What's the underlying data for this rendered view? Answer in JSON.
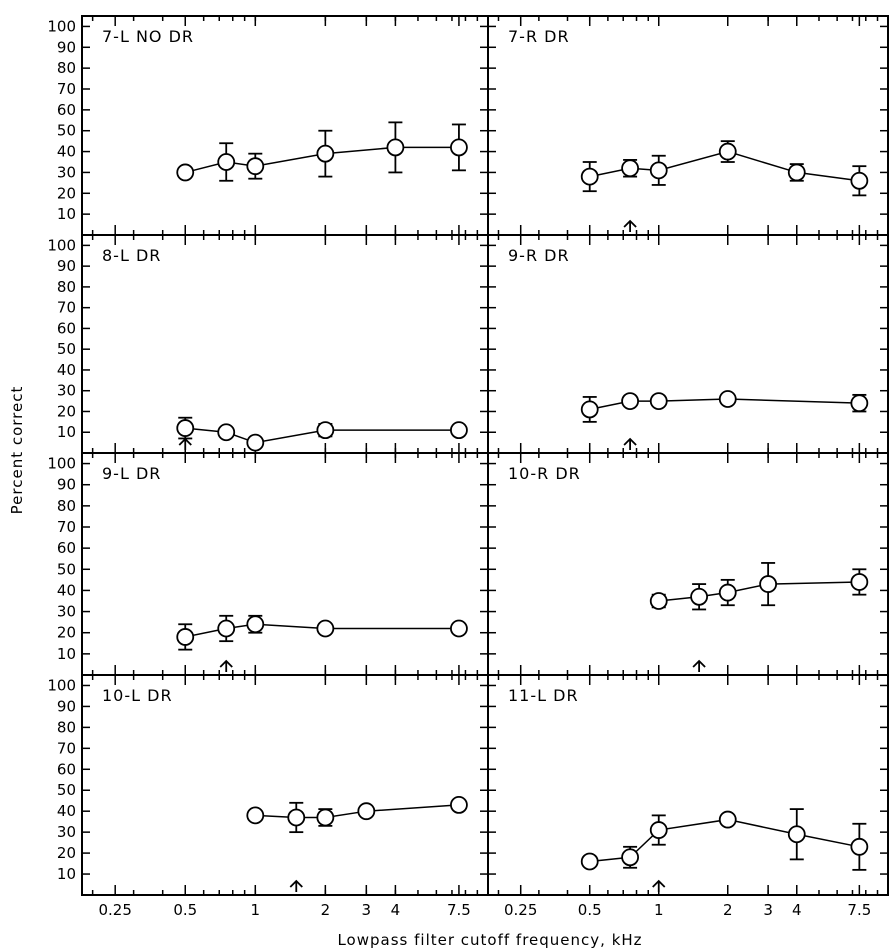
{
  "figure": {
    "ylabel": "Percent correct",
    "xlabel": "Lowpass filter cutoff frequency, kHz"
  },
  "chart_data": {
    "type": "scatter",
    "layout": "4x2 grid of panels",
    "xscale": "log",
    "xlim": [
      0.18,
      10
    ],
    "ylim": [
      0,
      105
    ],
    "xticks": [
      0.25,
      0.5,
      1,
      2,
      3,
      4,
      7.5
    ],
    "xtick_labels": [
      "0.25",
      "0.5",
      "1",
      "2",
      "3",
      "4",
      "7.5"
    ],
    "yticks": [
      10,
      20,
      30,
      40,
      50,
      60,
      70,
      80,
      90,
      100
    ],
    "ytick_labels": [
      "10",
      "20",
      "30",
      "40",
      "50",
      "60",
      "70",
      "80",
      "90",
      "100"
    ],
    "marker": "open circle with error bars, connected by lines",
    "panels": [
      {
        "label": "7-L  NO DR",
        "x": [
          0.5,
          0.75,
          1,
          2,
          4,
          7.5
        ],
        "y": [
          30,
          35,
          33,
          39,
          42,
          42
        ],
        "err": [
          0,
          9,
          6,
          11,
          12,
          11
        ],
        "arrow_x": null
      },
      {
        "label": "7-R  DR",
        "x": [
          0.5,
          0.75,
          1,
          2,
          4,
          7.5
        ],
        "y": [
          28,
          32,
          31,
          40,
          30,
          26
        ],
        "err": [
          7,
          4,
          7,
          5,
          4,
          7
        ],
        "arrow_x": 0.75
      },
      {
        "label": "8-L  DR",
        "x": [
          0.5,
          0.75,
          1,
          2,
          7.5
        ],
        "y": [
          12,
          10,
          5,
          11,
          11
        ],
        "err": [
          5,
          0,
          0,
          3,
          0
        ],
        "arrow_x": 0.5
      },
      {
        "label": "9-R  DR",
        "x": [
          0.5,
          0.75,
          1,
          2,
          7.5
        ],
        "y": [
          21,
          25,
          25,
          26,
          24
        ],
        "err": [
          6,
          0,
          0,
          0,
          4
        ],
        "arrow_x": 0.75
      },
      {
        "label": "9-L  DR",
        "x": [
          0.5,
          0.75,
          1,
          2,
          7.5
        ],
        "y": [
          18,
          22,
          24,
          22,
          22
        ],
        "err": [
          6,
          6,
          4,
          0,
          0
        ],
        "arrow_x": 0.75
      },
      {
        "label": "10-R  DR",
        "x": [
          1,
          1.5,
          2,
          3,
          7.5
        ],
        "y": [
          35,
          37,
          39,
          43,
          44
        ],
        "err": [
          3,
          6,
          6,
          10,
          6
        ],
        "arrow_x": 1.5
      },
      {
        "label": "10-L  DR",
        "x": [
          1,
          1.5,
          2,
          3,
          7.5
        ],
        "y": [
          38,
          37,
          37,
          40,
          43
        ],
        "err": [
          0,
          7,
          4,
          0,
          0
        ],
        "arrow_x": 1.5
      },
      {
        "label": "11-L  DR",
        "x": [
          0.5,
          0.75,
          1,
          2,
          4,
          7.5
        ],
        "y": [
          16,
          18,
          31,
          36,
          29,
          23
        ],
        "err": [
          0,
          5,
          7,
          0,
          12,
          11
        ],
        "arrow_x": 1
      }
    ]
  }
}
